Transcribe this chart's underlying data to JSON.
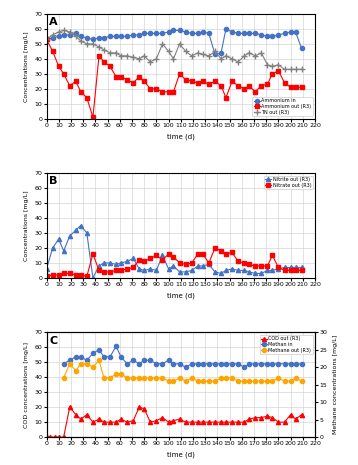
{
  "panel_A": {
    "title": "A",
    "ylabel": "Concentrations [mg/L]",
    "xlabel": "time (d)",
    "ylim": [
      0,
      70
    ],
    "yticks": [
      0,
      10,
      20,
      30,
      40,
      50,
      60,
      70
    ],
    "ammonium_in": {
      "x": [
        0,
        5,
        10,
        14,
        19,
        24,
        28,
        33,
        38,
        43,
        47,
        52,
        57,
        61,
        66,
        71,
        76,
        80,
        85,
        90,
        95,
        100,
        104,
        109,
        114,
        119,
        124,
        128,
        133,
        138,
        143,
        147,
        152,
        157,
        162,
        166,
        171,
        176,
        181,
        185,
        190,
        195,
        200,
        204,
        209
      ],
      "y": [
        53,
        54,
        55,
        56,
        56,
        57,
        55,
        54,
        53,
        54,
        54,
        55,
        55,
        55,
        55,
        56,
        56,
        57,
        57,
        57,
        57,
        58,
        59,
        59,
        58,
        57,
        57,
        58,
        57,
        43,
        44,
        60,
        58,
        57,
        57,
        57,
        57,
        56,
        55,
        55,
        56,
        57,
        58,
        58,
        47
      ],
      "color": "#4472C4",
      "marker": "o",
      "markersize": 3,
      "label": "Ammonium in"
    },
    "ammonium_out": {
      "x": [
        0,
        5,
        10,
        14,
        19,
        24,
        28,
        33,
        38,
        43,
        47,
        52,
        57,
        61,
        66,
        71,
        76,
        80,
        85,
        90,
        95,
        100,
        104,
        109,
        114,
        119,
        124,
        128,
        133,
        138,
        143,
        147,
        152,
        157,
        162,
        166,
        171,
        176,
        181,
        185,
        190,
        195,
        200,
        204,
        209
      ],
      "y": [
        53,
        45,
        35,
        30,
        22,
        25,
        18,
        14,
        1,
        42,
        38,
        35,
        28,
        28,
        26,
        24,
        28,
        25,
        20,
        20,
        18,
        18,
        18,
        30,
        26,
        25,
        24,
        25,
        23,
        25,
        22,
        14,
        25,
        22,
        20,
        22,
        18,
        22,
        23,
        30,
        32,
        24,
        21,
        21,
        21
      ],
      "color": "#FF0000",
      "marker": "s",
      "markersize": 3,
      "label": "Ammonium out (R3)"
    },
    "TN_out": {
      "x": [
        0,
        5,
        10,
        14,
        19,
        24,
        28,
        33,
        38,
        43,
        47,
        52,
        57,
        61,
        66,
        71,
        76,
        80,
        85,
        90,
        95,
        100,
        104,
        109,
        114,
        119,
        124,
        128,
        133,
        138,
        143,
        147,
        152,
        157,
        162,
        166,
        171,
        176,
        181,
        185,
        190,
        195,
        200,
        204,
        209
      ],
      "y": [
        53,
        56,
        58,
        59,
        58,
        55,
        52,
        50,
        50,
        48,
        46,
        44,
        44,
        42,
        42,
        41,
        40,
        42,
        38,
        40,
        50,
        45,
        40,
        50,
        45,
        42,
        44,
        43,
        42,
        45,
        40,
        42,
        40,
        38,
        42,
        44,
        42,
        44,
        36,
        35,
        36,
        33,
        33,
        33,
        33
      ],
      "color": "#808080",
      "marker": "+",
      "markersize": 5,
      "label": "TN out (R3)"
    }
  },
  "panel_B": {
    "title": "B",
    "ylabel": "Concentrations [mg/L]",
    "xlabel": "time (d)",
    "ylim": [
      0,
      70
    ],
    "yticks": [
      0,
      10,
      20,
      30,
      40,
      50,
      60,
      70
    ],
    "nitrite_out": {
      "x": [
        0,
        5,
        10,
        14,
        19,
        24,
        28,
        33,
        38,
        43,
        47,
        52,
        57,
        61,
        66,
        71,
        76,
        80,
        85,
        90,
        95,
        100,
        104,
        109,
        114,
        119,
        124,
        128,
        133,
        138,
        143,
        147,
        152,
        157,
        162,
        166,
        171,
        176,
        181,
        185,
        190,
        195,
        200,
        204,
        209
      ],
      "y": [
        6,
        20,
        26,
        18,
        28,
        32,
        35,
        30,
        0,
        8,
        10,
        10,
        9,
        10,
        11,
        13,
        6,
        5,
        6,
        5,
        15,
        6,
        8,
        4,
        4,
        5,
        8,
        8,
        9,
        4,
        3,
        5,
        6,
        5,
        5,
        4,
        3,
        3,
        5,
        5,
        6,
        7,
        7,
        7,
        7
      ],
      "color": "#4472C4",
      "marker": "^",
      "markersize": 3,
      "label": "Nitrite out (R3)"
    },
    "nitrate_out": {
      "x": [
        0,
        5,
        10,
        14,
        19,
        24,
        28,
        33,
        38,
        43,
        47,
        52,
        57,
        61,
        66,
        71,
        76,
        80,
        85,
        90,
        95,
        100,
        104,
        109,
        114,
        119,
        124,
        128,
        133,
        138,
        143,
        147,
        152,
        157,
        162,
        166,
        171,
        176,
        181,
        185,
        190,
        195,
        200,
        204,
        209
      ],
      "y": [
        1,
        2,
        2,
        3,
        3,
        2,
        2,
        1,
        16,
        5,
        4,
        4,
        5,
        5,
        6,
        7,
        12,
        11,
        13,
        15,
        12,
        16,
        14,
        10,
        9,
        10,
        16,
        16,
        10,
        20,
        18,
        16,
        17,
        11,
        10,
        9,
        8,
        8,
        8,
        15,
        7,
        5,
        5,
        5,
        5
      ],
      "color": "#FF0000",
      "marker": "s",
      "markersize": 3,
      "label": "Nitrate out (R3)"
    }
  },
  "panel_C": {
    "title": "C",
    "ylabel_left": "COD concentrations [mg/L]",
    "ylabel_right": "Methane concentrations [mg/L]",
    "xlabel": "time (d)",
    "ylim_left": [
      0,
      70
    ],
    "ylim_right": [
      0,
      30
    ],
    "yticks_left": [
      0,
      10,
      20,
      30,
      40,
      50,
      60,
      70
    ],
    "yticks_right": [
      0,
      5,
      10,
      15,
      20,
      25,
      30
    ],
    "COD_out": {
      "x": [
        0,
        3,
        7,
        10,
        14,
        19,
        24,
        28,
        33,
        38,
        43,
        47,
        52,
        57,
        61,
        66,
        71,
        76,
        80,
        85,
        90,
        95,
        100,
        104,
        109,
        114,
        119,
        124,
        128,
        133,
        138,
        143,
        147,
        152,
        157,
        162,
        166,
        171,
        176,
        181,
        185,
        190,
        195,
        200,
        204,
        209
      ],
      "y": [
        0,
        0,
        0,
        0,
        0,
        20,
        15,
        12,
        15,
        10,
        12,
        10,
        10,
        10,
        12,
        10,
        11,
        20,
        19,
        10,
        11,
        13,
        10,
        11,
        12,
        10,
        10,
        10,
        10,
        10,
        10,
        10,
        10,
        10,
        10,
        10,
        12,
        13,
        13,
        14,
        13,
        10,
        10,
        15,
        12,
        15
      ],
      "color": "#FF0000",
      "marker": "^",
      "markersize": 3,
      "label": "COD out (R3)"
    },
    "methan_in": {
      "x": [
        14,
        19,
        24,
        28,
        33,
        38,
        43,
        47,
        52,
        57,
        61,
        66,
        71,
        76,
        80,
        85,
        90,
        95,
        100,
        104,
        109,
        114,
        119,
        124,
        128,
        133,
        138,
        143,
        147,
        152,
        157,
        162,
        166,
        171,
        176,
        181,
        185,
        190,
        195,
        200,
        204,
        209
      ],
      "y": [
        21,
        22,
        23,
        23,
        22,
        24,
        25,
        23,
        23,
        26,
        23,
        21,
        22,
        21,
        22,
        22,
        21,
        21,
        22,
        21,
        21,
        20,
        21,
        21,
        21,
        21,
        21,
        21,
        21,
        21,
        21,
        20,
        21,
        21,
        21,
        21,
        21,
        21,
        21,
        21,
        21,
        21
      ],
      "color": "#4472C4",
      "marker": "o",
      "markersize": 3,
      "label": "Methan in"
    },
    "methane_out": {
      "x": [
        14,
        19,
        24,
        28,
        33,
        38,
        43,
        47,
        52,
        57,
        61,
        66,
        71,
        76,
        80,
        85,
        90,
        95,
        100,
        104,
        109,
        114,
        119,
        124,
        128,
        133,
        138,
        143,
        147,
        152,
        157,
        162,
        166,
        171,
        176,
        181,
        185,
        190,
        195,
        200,
        204,
        209
      ],
      "y": [
        17,
        21,
        19,
        21,
        21,
        20,
        22,
        17,
        17,
        18,
        18,
        17,
        17,
        17,
        17,
        17,
        17,
        17,
        16,
        16,
        17,
        16,
        17,
        16,
        16,
        16,
        16,
        17,
        17,
        17,
        16,
        16,
        16,
        16,
        16,
        16,
        16,
        17,
        16,
        16,
        17,
        16
      ],
      "color": "#FFA500",
      "marker": "o",
      "markersize": 3,
      "label": "Methane out (R3)"
    }
  },
  "xticks": [
    0,
    10,
    20,
    30,
    40,
    50,
    60,
    70,
    80,
    90,
    100,
    110,
    120,
    130,
    140,
    150,
    160,
    170,
    180,
    190,
    200,
    210,
    220
  ],
  "background_color": "#FFFFFF",
  "grid_color": "#CCCCCC"
}
